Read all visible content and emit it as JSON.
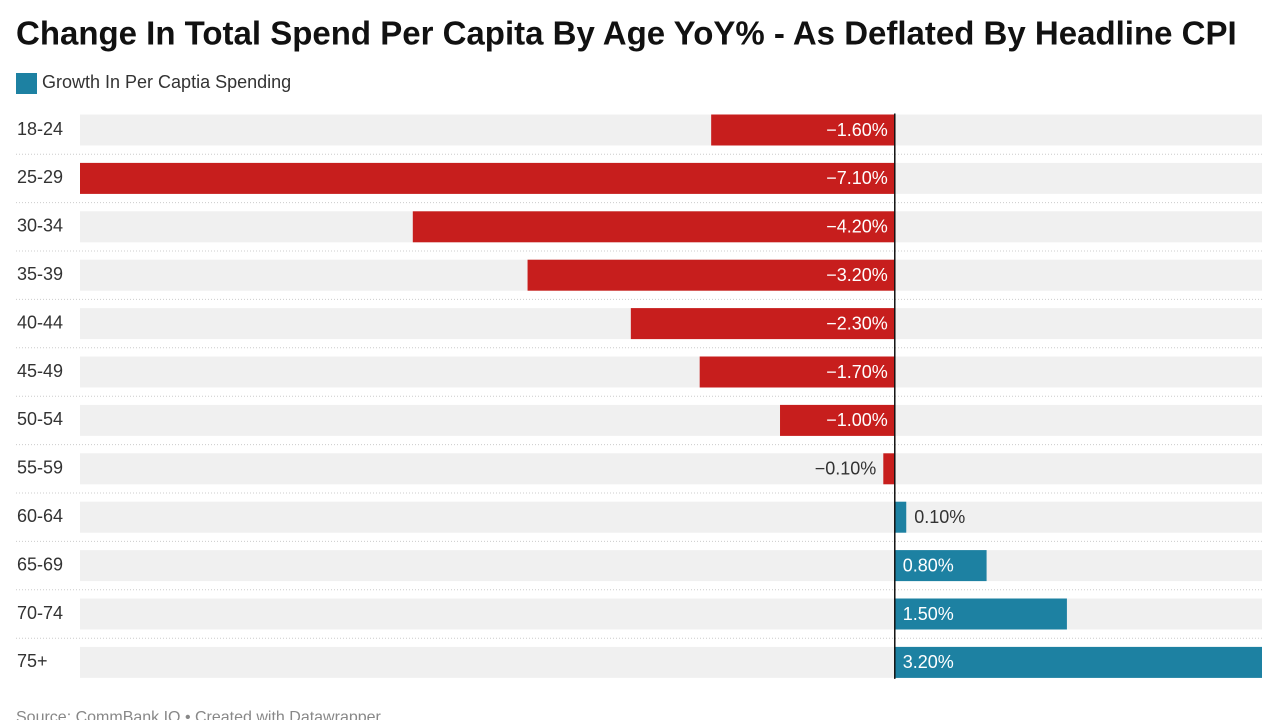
{
  "chart_data": {
    "type": "bar",
    "orientation": "horizontal",
    "title": "Change In Total Spend Per Capita By Age YoY% - As Deflated By Headline CPI",
    "source": "Source: CommBank IQ • Created with Datawrapper",
    "categories": [
      "18-24",
      "25-29",
      "30-34",
      "35-39",
      "40-44",
      "45-49",
      "50-54",
      "55-59",
      "60-64",
      "65-69",
      "70-74",
      "75+"
    ],
    "series": [
      {
        "name": "Growth In Per Captia Spending",
        "color": "#1d81a2",
        "negative_color": "#c71e1d",
        "values": [
          -1.6,
          -7.1,
          -4.2,
          -3.2,
          -2.3,
          -1.7,
          -1.0,
          -0.1,
          0.1,
          0.8,
          1.5,
          3.2
        ],
        "value_labels": [
          "−1.60%",
          "−7.10%",
          "−4.20%",
          "−3.20%",
          "−2.30%",
          "−1.70%",
          "−1.00%",
          "−0.10%",
          "0.10%",
          "0.80%",
          "1.50%",
          "3.20%"
        ]
      }
    ],
    "xlim": [
      -7.1,
      3.2
    ]
  }
}
